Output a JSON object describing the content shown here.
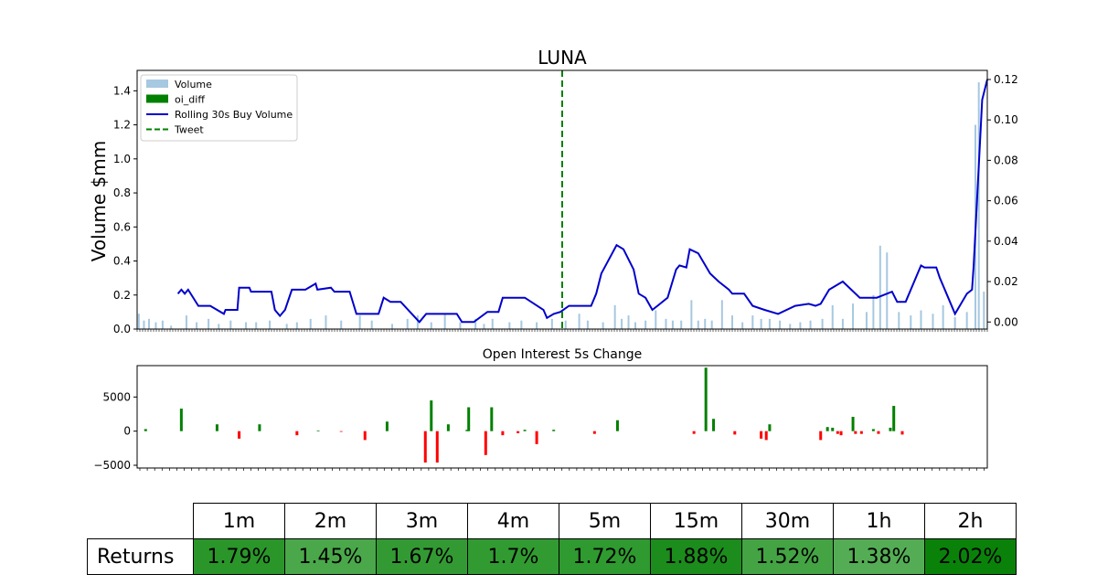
{
  "chart_data": [
    {
      "type": "bar+line",
      "title": "LUNA",
      "ylabel": "Volume $mm",
      "ylim": [
        0,
        1.52
      ],
      "yticks": [
        "0.0",
        "0.2",
        "0.4",
        "0.6",
        "0.8",
        "1.0",
        "1.2",
        "1.4"
      ],
      "y2lim": [
        -0.0035,
        0.1245
      ],
      "y2ticks": [
        "0.00",
        "0.02",
        "0.04",
        "0.06",
        "0.08",
        "0.10",
        "0.12"
      ],
      "xlim": [
        0,
        1000
      ],
      "legend_position": "upper-left",
      "legend": [
        {
          "label": "Volume",
          "kind": "bar",
          "color": "#a6c8e0"
        },
        {
          "label": "oi_diff",
          "kind": "bar",
          "color": "#008000"
        },
        {
          "label": "Rolling 30s Buy Volume",
          "kind": "line",
          "color": "#0000cc"
        },
        {
          "label": "Tweet",
          "kind": "dashed-line",
          "color": "#008000"
        }
      ],
      "tweet_x": 500,
      "rolling_buy_volume": {
        "name": "Rolling 30s Buy Volume",
        "x": [
          48,
          52,
          56,
          60,
          72,
          86,
          102,
          104,
          118,
          120,
          132,
          134,
          158,
          162,
          168,
          174,
          182,
          198,
          210,
          212,
          228,
          232,
          250,
          258,
          268,
          284,
          290,
          298,
          310,
          332,
          340,
          376,
          382,
          396,
          412,
          425,
          430,
          456,
          478,
          482,
          490,
          498,
          508,
          520,
          534,
          540,
          546,
          564,
          572,
          584,
          590,
          598,
          606,
          612,
          624,
          634,
          638,
          646,
          650,
          660,
          674,
          684,
          696,
          700,
          714,
          724,
          738,
          754,
          774,
          790,
          798,
          804,
          814,
          830,
          850,
          870,
          888,
          894,
          904,
          922,
          926,
          940,
          944,
          952,
          962,
          976,
          982,
          984,
          994,
          1000
        ],
        "y": [
          0.014,
          0.016,
          0.014,
          0.016,
          0.008,
          0.008,
          0.004,
          0.006,
          0.006,
          0.017,
          0.017,
          0.015,
          0.015,
          0.006,
          0.003,
          0.006,
          0.016,
          0.016,
          0.019,
          0.016,
          0.017,
          0.015,
          0.015,
          0.004,
          0.004,
          0.004,
          0.012,
          0.01,
          0.01,
          0.0,
          0.004,
          0.004,
          0.0,
          0.0,
          0.005,
          0.005,
          0.012,
          0.012,
          0.006,
          0.002,
          0.004,
          0.005,
          0.008,
          0.008,
          0.008,
          0.014,
          0.024,
          0.038,
          0.036,
          0.026,
          0.014,
          0.012,
          0.006,
          0.008,
          0.012,
          0.026,
          0.028,
          0.027,
          0.036,
          0.034,
          0.024,
          0.02,
          0.016,
          0.014,
          0.014,
          0.008,
          0.006,
          0.004,
          0.008,
          0.009,
          0.008,
          0.009,
          0.016,
          0.02,
          0.012,
          0.012,
          0.015,
          0.01,
          0.01,
          0.028,
          0.027,
          0.027,
          0.022,
          0.014,
          0.004,
          0.014,
          0.016,
          0.028,
          0.11,
          0.12
        ]
      },
      "volume_bars": {
        "name": "Volume",
        "x": [
          2,
          8,
          14,
          22,
          30,
          40,
          58,
          70,
          84,
          96,
          110,
          128,
          140,
          156,
          176,
          188,
          204,
          222,
          240,
          262,
          276,
          300,
          318,
          330,
          346,
          362,
          380,
          398,
          408,
          418,
          438,
          452,
          470,
          488,
          504,
          520,
          530,
          548,
          562,
          570,
          578,
          586,
          598,
          610,
          622,
          630,
          640,
          652,
          660,
          668,
          676,
          688,
          700,
          712,
          724,
          734,
          744,
          756,
          768,
          780,
          792,
          806,
          818,
          830,
          842,
          858,
          866,
          874,
          882,
          896,
          910,
          922,
          936,
          948,
          962,
          976,
          986,
          990,
          996
        ],
        "y": [
          0.09,
          0.05,
          0.06,
          0.04,
          0.05,
          0.02,
          0.08,
          0.04,
          0.06,
          0.03,
          0.05,
          0.04,
          0.04,
          0.05,
          0.03,
          0.04,
          0.06,
          0.08,
          0.05,
          0.08,
          0.05,
          0.03,
          0.06,
          0.08,
          0.04,
          0.09,
          0.04,
          0.06,
          0.03,
          0.06,
          0.04,
          0.05,
          0.04,
          0.06,
          0.05,
          0.09,
          0.05,
          0.04,
          0.14,
          0.06,
          0.08,
          0.04,
          0.05,
          0.11,
          0.06,
          0.05,
          0.05,
          0.17,
          0.05,
          0.06,
          0.05,
          0.17,
          0.08,
          0.04,
          0.08,
          0.06,
          0.06,
          0.05,
          0.03,
          0.04,
          0.05,
          0.06,
          0.14,
          0.06,
          0.15,
          0.1,
          0.2,
          0.49,
          0.45,
          0.1,
          0.08,
          0.11,
          0.09,
          0.14,
          0.07,
          0.1,
          1.2,
          1.45,
          0.22
        ]
      }
    },
    {
      "type": "bar",
      "title": "Open Interest 5s Change",
      "ylim": [
        -5400,
        9600
      ],
      "yticks": [
        -5000,
        0,
        5000
      ],
      "ytick_labels": [
        "−5000",
        "0",
        "5000"
      ],
      "xlim": [
        0,
        1000
      ],
      "series": [
        {
          "name": "oi_diff",
          "x": [
            10,
            52,
            94,
            120,
            144,
            188,
            213,
            240,
            268,
            294,
            339,
            346,
            353,
            366,
            390,
            388,
            410,
            417,
            430,
            448,
            456,
            470,
            490,
            538,
            565,
            655,
            669,
            678,
            703,
            734,
            740,
            744,
            804,
            812,
            818,
            824,
            828,
            842,
            845,
            852,
            866,
            872,
            886,
            890,
            900,
            935
          ],
          "y": [
            300,
            3300,
            1000,
            -1100,
            1000,
            -600,
            100,
            -100,
            -1300,
            1400,
            -4600,
            4500,
            -4600,
            1000,
            3500,
            200,
            -3500,
            3500,
            -600,
            -300,
            200,
            -1900,
            200,
            -400,
            1600,
            -400,
            9300,
            1800,
            -500,
            -1100,
            -1300,
            1000,
            -1300,
            600,
            500,
            -400,
            -600,
            2100,
            -400,
            -400,
            300,
            -400,
            500,
            3700,
            -500,
            0
          ],
          "positive_color": "#008000",
          "negative_color": "#ff0000"
        }
      ]
    }
  ],
  "returns_table": {
    "row_label": "Returns",
    "headers": [
      "1m",
      "2m",
      "3m",
      "4m",
      "5m",
      "15m",
      "30m",
      "1h",
      "2h"
    ],
    "values": [
      "1.79%",
      "1.45%",
      "1.67%",
      "1.7%",
      "1.72%",
      "1.88%",
      "1.52%",
      "1.38%",
      "2.02%"
    ],
    "colors": [
      "#2a962a",
      "#4aa84a",
      "#339a33",
      "#319b31",
      "#2f9a2f",
      "#1c8c1c",
      "#44a444",
      "#54ad54",
      "#0a820a"
    ]
  }
}
